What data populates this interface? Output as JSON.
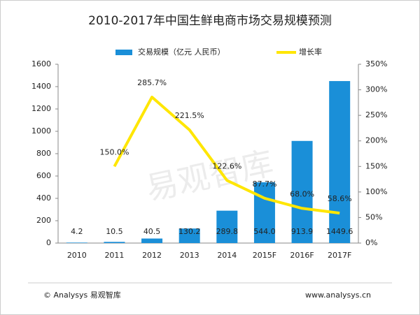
{
  "chart_data": {
    "type": "bar",
    "title": "2010-2017年中国生鲜电商市场交易规模预测",
    "categories": [
      "2010",
      "2011",
      "2012",
      "2013",
      "2014",
      "2015F",
      "2016F",
      "2017F"
    ],
    "series": [
      {
        "name": "交易规模（亿元 人民币）",
        "type": "bar",
        "color": "#1a8fd8",
        "values": [
          4.2,
          10.5,
          40.5,
          130.2,
          289.8,
          544.0,
          913.9,
          1449.6
        ],
        "value_labels": [
          "4.2",
          "10.5",
          "40.5",
          "130.2",
          "289.8",
          "544.0",
          "913.9",
          "1449.6"
        ]
      },
      {
        "name": "增长率",
        "type": "line",
        "axis": "y2",
        "color": "#ffe600",
        "values": [
          null,
          150.0,
          285.7,
          221.5,
          122.6,
          87.7,
          68.0,
          58.6
        ],
        "value_labels": [
          null,
          "150.0%",
          "285.7%",
          "221.5%",
          "122.6%",
          "87.7%",
          "68.0%",
          "58.6%"
        ]
      }
    ],
    "ylim": [
      0,
      1600
    ],
    "yticks": [
      0,
      200,
      400,
      600,
      800,
      1000,
      1200,
      1400,
      1600
    ],
    "y2lim": [
      0,
      350
    ],
    "y2ticks": [
      {
        "value": 0,
        "label": "0%"
      },
      {
        "value": 50,
        "label": "50%"
      },
      {
        "value": 100,
        "label": "100%"
      },
      {
        "value": 150,
        "label": "150%"
      },
      {
        "value": 200,
        "label": "200%"
      },
      {
        "value": 250,
        "label": "250%"
      },
      {
        "value": 300,
        "label": "300%"
      },
      {
        "value": 350,
        "label": "350%"
      }
    ],
    "legend": "top",
    "watermark": "易观智库",
    "footer_left": "© Analysys 易观智库",
    "footer_right": "www.analysys.cn"
  }
}
